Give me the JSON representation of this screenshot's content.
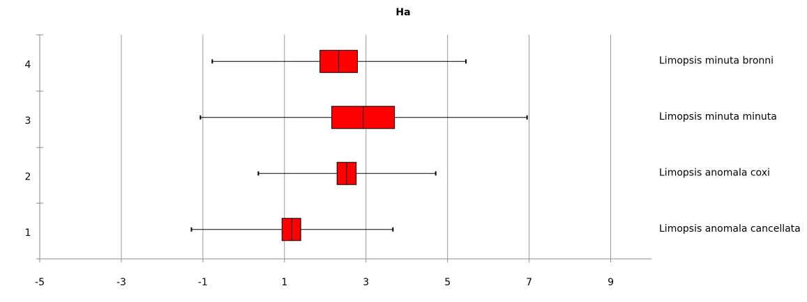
{
  "chart_data": {
    "type": "boxplot",
    "title": "Ha",
    "categories": [
      "1",
      "2",
      "3",
      "4"
    ],
    "group_labels": [
      "Limopsis anomala cancellata",
      "Limopsis anomala coxi",
      "Limopsis minuta minuta",
      "Limopsis minuta bronni"
    ],
    "boxes": [
      {
        "low": -1.28,
        "q1": 0.94,
        "median": 1.18,
        "q3": 1.4,
        "high": 3.66
      },
      {
        "low": 0.36,
        "q1": 2.29,
        "median": 2.53,
        "q3": 2.76,
        "high": 4.71
      },
      {
        "low": -1.06,
        "q1": 2.16,
        "median": 2.93,
        "q3": 3.7,
        "high": 6.95
      },
      {
        "low": -0.77,
        "q1": 1.87,
        "median": 2.33,
        "q3": 2.79,
        "high": 5.45
      }
    ],
    "color": "#ff0000",
    "xlim": [
      -5,
      10
    ],
    "xticks": [
      -5,
      -3,
      -1,
      1,
      3,
      5,
      7,
      9
    ],
    "grid": true
  }
}
